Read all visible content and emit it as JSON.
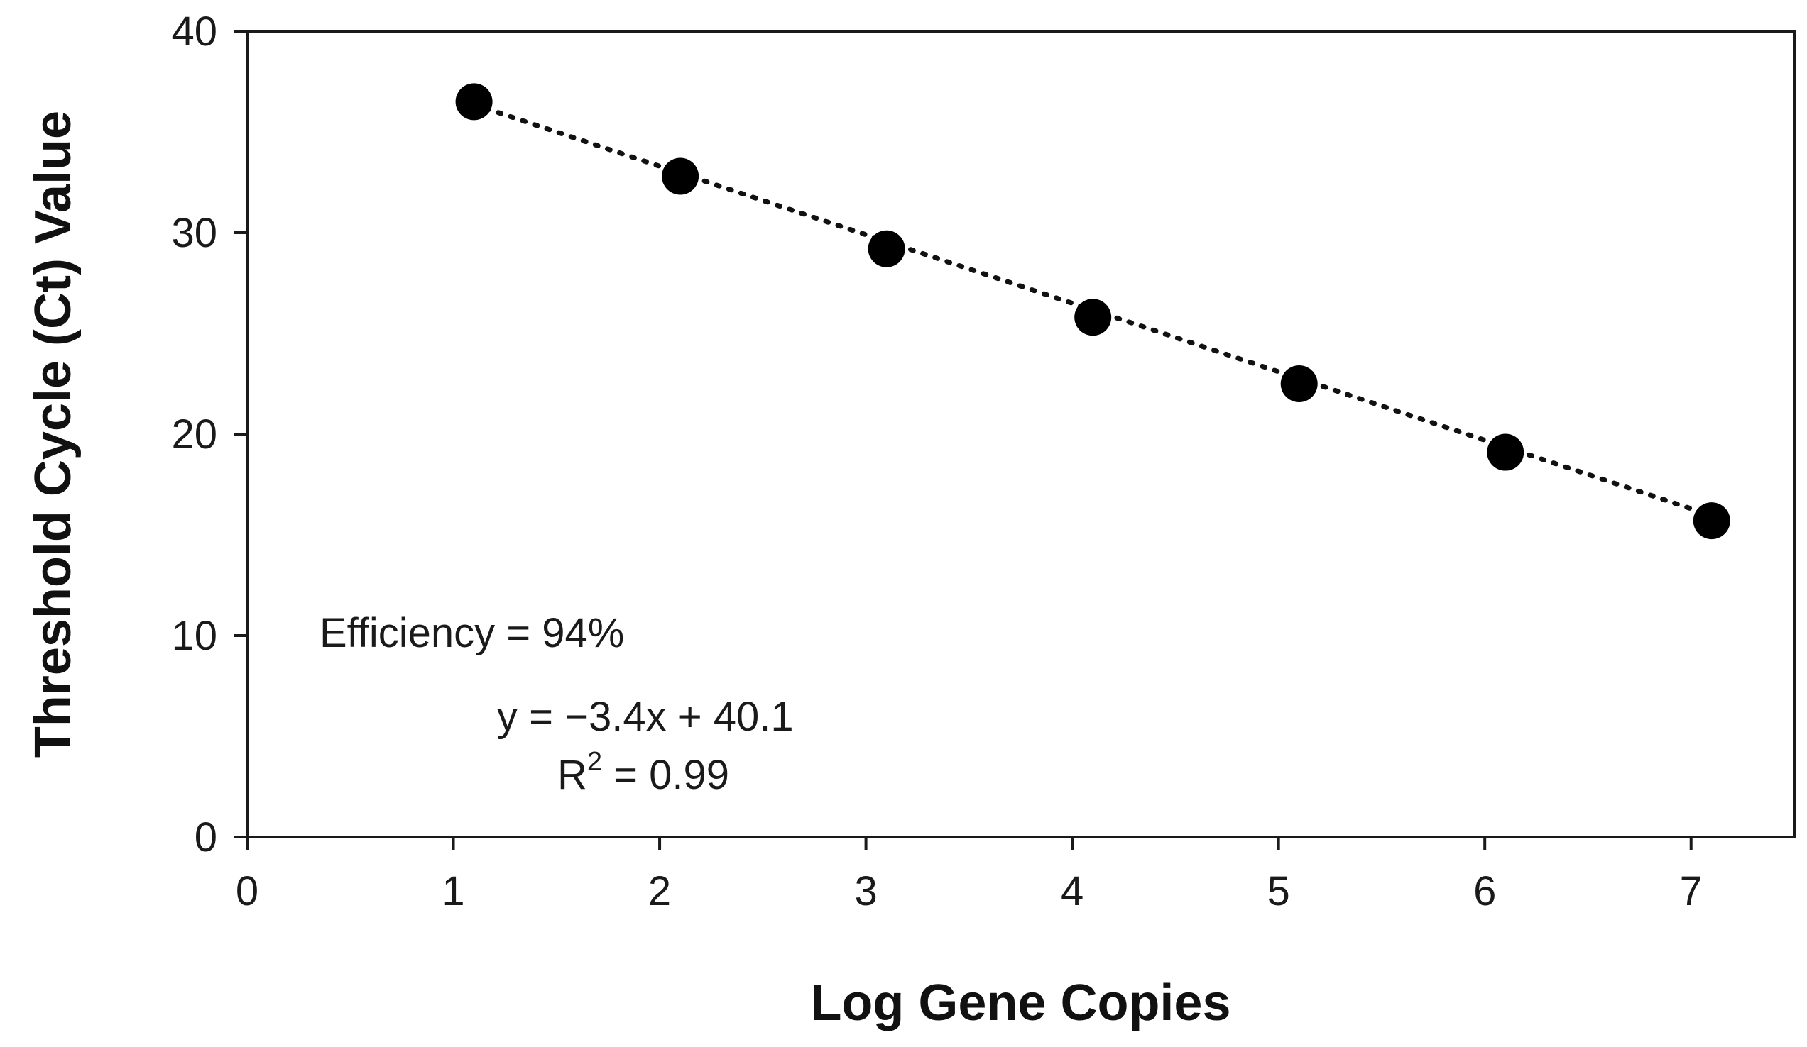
{
  "chart_data": {
    "type": "scatter",
    "title": "",
    "xlabel": "Log Gene Copies",
    "ylabel": "Threshold Cycle (Ct) Value",
    "xlim": [
      0,
      7.5
    ],
    "ylim": [
      0,
      40
    ],
    "x_ticks": [
      "0",
      "1",
      "2",
      "3",
      "4",
      "5",
      "6",
      "7"
    ],
    "y_ticks": [
      "0",
      "10",
      "20",
      "30",
      "40"
    ],
    "grid": false,
    "legend": "none",
    "marker_color": "#000000",
    "series": [
      {
        "x": [
          1.1,
          2.1,
          3.1,
          4.1,
          5.1,
          6.1,
          7.1
        ],
        "y": [
          36.5,
          32.8,
          29.2,
          25.8,
          22.5,
          19.1,
          15.7
        ]
      }
    ],
    "trendline": {
      "style": "dotted",
      "slope": -3.4,
      "intercept": 40.1,
      "x_range": [
        1.1,
        7.1
      ]
    },
    "annotations": {
      "efficiency": "Efficiency = 94%",
      "equation": "y = −3.4x + 40.1",
      "r_squared_prefix": "R",
      "r_squared_sup": "2",
      "r_squared_value": " = 0.99"
    }
  }
}
